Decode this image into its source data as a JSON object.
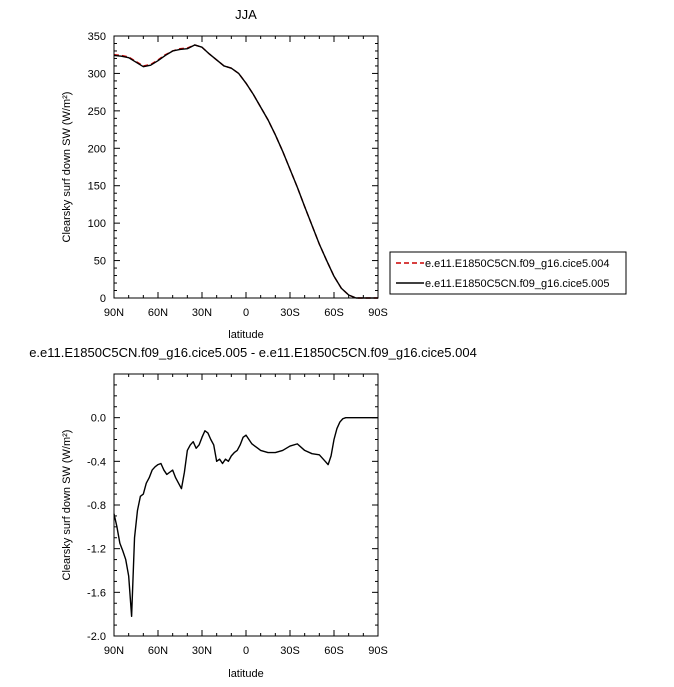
{
  "chart_data": [
    {
      "type": "line",
      "title": "JJA",
      "xlabel": "latitude",
      "ylabel": "Clearsky surf down SW (W/m²)",
      "xlim": [
        90,
        -90
      ],
      "ylim": [
        0,
        350
      ],
      "x_ticks": [
        "90N",
        "60N",
        "30N",
        "0",
        "30S",
        "60S",
        "90S"
      ],
      "y_ticks": [
        "0",
        "50",
        "100",
        "150",
        "200",
        "250",
        "300",
        "350"
      ],
      "grid": false,
      "legend_position": "right",
      "series": [
        {
          "name": "e.e11.E1850C5CN.f09_g16.cice5.004",
          "color": "#cc0000",
          "dash": "dashed",
          "x": [
            90,
            85,
            80,
            75,
            70,
            65,
            60,
            55,
            50,
            45,
            40,
            35,
            30,
            25,
            20,
            15,
            10,
            5,
            0,
            -5,
            -10,
            -15,
            -20,
            -25,
            -30,
            -35,
            -40,
            -45,
            -50,
            -55,
            -60,
            -65,
            -70,
            -75,
            -80,
            -85,
            -90
          ],
          "y": [
            325,
            324,
            322,
            316,
            310,
            312,
            318,
            325,
            330,
            333,
            334,
            338,
            335,
            326,
            318,
            310,
            307,
            300,
            287,
            272,
            255,
            238,
            218,
            196,
            172,
            148,
            122,
            97,
            72,
            50,
            29,
            13,
            4,
            0,
            0,
            0,
            0
          ]
        },
        {
          "name": "e.e11.E1850C5CN.f09_g16.cice5.005",
          "color": "#000000",
          "dash": "solid",
          "x": [
            90,
            85,
            80,
            75,
            70,
            65,
            60,
            55,
            50,
            45,
            40,
            35,
            30,
            25,
            20,
            15,
            10,
            5,
            0,
            -5,
            -10,
            -15,
            -20,
            -25,
            -30,
            -35,
            -40,
            -45,
            -50,
            -55,
            -60,
            -65,
            -70,
            -75,
            -80,
            -85,
            -90
          ],
          "y": [
            324,
            323,
            321,
            315,
            309,
            311,
            317,
            324,
            330,
            332,
            333,
            338,
            335,
            326,
            318,
            310,
            307,
            300,
            287,
            272,
            255,
            238,
            218,
            196,
            172,
            148,
            122,
            97,
            72,
            50,
            29,
            13,
            4,
            0,
            0,
            0,
            0
          ]
        }
      ]
    },
    {
      "type": "line",
      "title": "e.e11.E1850C5CN.f09_g16.cice5.005 - e.e11.E1850C5CN.f09_g16.cice5.004",
      "xlabel": "latitude",
      "ylabel": "Clearsky surf down SW (W/m²)",
      "xlim": [
        90,
        -90
      ],
      "ylim": [
        -2.0,
        0.4
      ],
      "x_ticks": [
        "90N",
        "60N",
        "30N",
        "0",
        "30S",
        "60S",
        "90S"
      ],
      "y_ticks": [
        "-2.0",
        "-1.6",
        "-1.2",
        "-0.8",
        "-0.4",
        "0.0"
      ],
      "grid": false,
      "series": [
        {
          "color": "#000000",
          "dash": "solid",
          "x": [
            90,
            88,
            86,
            84,
            82,
            80,
            78,
            76,
            74,
            72,
            70,
            68,
            66,
            64,
            62,
            60,
            58,
            56,
            54,
            52,
            50,
            48,
            46,
            44,
            42,
            40,
            38,
            36,
            34,
            32,
            30,
            28,
            26,
            24,
            22,
            20,
            18,
            16,
            14,
            12,
            10,
            8,
            6,
            4,
            2,
            0,
            -2,
            -4,
            -6,
            -8,
            -10,
            -15,
            -20,
            -25,
            -30,
            -35,
            -40,
            -45,
            -50,
            -54,
            -56,
            -58,
            -60,
            -62,
            -64,
            -66,
            -68,
            -70,
            -72,
            -74,
            -76,
            -78,
            -80,
            -85,
            -90
          ],
          "y": [
            -0.88,
            -1.0,
            -1.15,
            -1.22,
            -1.3,
            -1.45,
            -1.82,
            -1.1,
            -0.85,
            -0.72,
            -0.7,
            -0.6,
            -0.55,
            -0.48,
            -0.45,
            -0.43,
            -0.42,
            -0.48,
            -0.52,
            -0.5,
            -0.48,
            -0.55,
            -0.6,
            -0.65,
            -0.5,
            -0.3,
            -0.25,
            -0.22,
            -0.28,
            -0.25,
            -0.18,
            -0.12,
            -0.14,
            -0.2,
            -0.25,
            -0.4,
            -0.38,
            -0.42,
            -0.38,
            -0.4,
            -0.35,
            -0.32,
            -0.3,
            -0.25,
            -0.18,
            -0.16,
            -0.2,
            -0.24,
            -0.26,
            -0.28,
            -0.3,
            -0.32,
            -0.32,
            -0.3,
            -0.26,
            -0.24,
            -0.3,
            -0.33,
            -0.34,
            -0.4,
            -0.43,
            -0.35,
            -0.2,
            -0.1,
            -0.04,
            -0.01,
            0.0,
            0.0,
            0.0,
            0.0,
            0.0,
            0.0,
            0.0,
            0.0,
            0.0
          ]
        }
      ]
    }
  ]
}
